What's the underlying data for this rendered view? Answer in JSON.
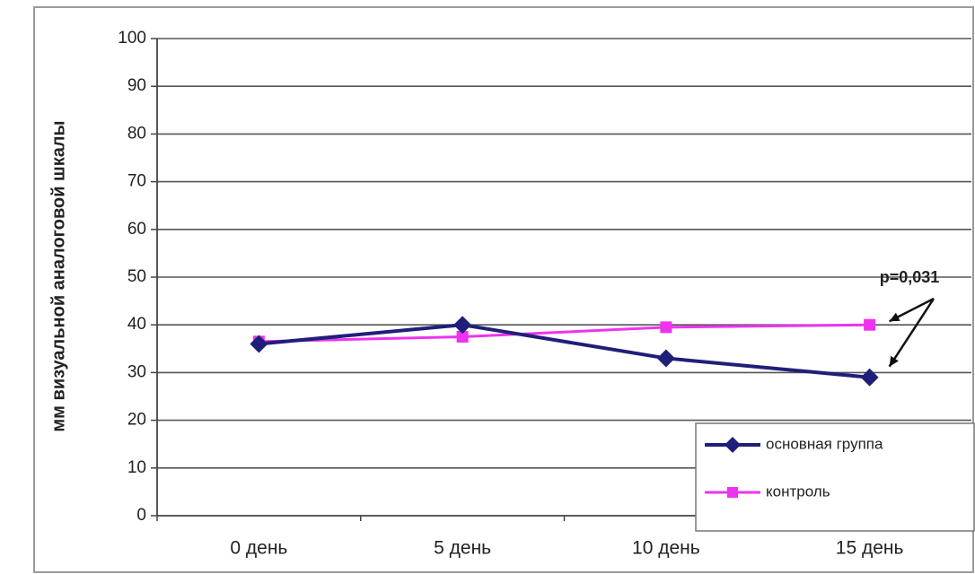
{
  "chart_data": {
    "type": "line",
    "title": "",
    "xlabel": "",
    "ylabel": "мм визуальной аналоговой шкалы",
    "categories": [
      "0 день",
      "5 день",
      "10 день",
      "15 день"
    ],
    "ylim": [
      0,
      100
    ],
    "yticks": [
      "0",
      "10",
      "20",
      "30",
      "40",
      "50",
      "60",
      "70",
      "80",
      "90",
      "100"
    ],
    "grid": true,
    "legend_position": "bottom-right",
    "series": [
      {
        "name": "основная группа",
        "values": [
          36,
          40,
          33,
          29
        ],
        "color": "#1f1f7a",
        "marker": "diamond"
      },
      {
        "name": "контроль",
        "values": [
          36.5,
          37.5,
          39.5,
          40
        ],
        "color": "#ee33ee",
        "marker": "square"
      }
    ],
    "annotation": {
      "text": "p=0,031"
    }
  }
}
